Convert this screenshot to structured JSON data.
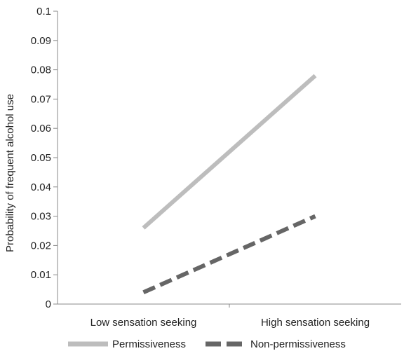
{
  "chart_data": {
    "type": "line",
    "categories": [
      "Low sensation seeking",
      "High sensation seeking"
    ],
    "series": [
      {
        "name": "Permissiveness",
        "values": [
          0.026,
          0.078
        ],
        "color": "#bdbdbd",
        "dash": "solid"
      },
      {
        "name": "Non-permissiveness",
        "values": [
          0.004,
          0.03
        ],
        "color": "#666666",
        "dash": "dashed"
      }
    ],
    "ylabel": "Probability of frequent alcohol use",
    "xlabel": "",
    "title": "",
    "ylim": [
      0,
      0.1
    ],
    "yticks": [
      "0",
      "0.01",
      "0.02",
      "0.03",
      "0.04",
      "0.05",
      "0.06",
      "0.07",
      "0.08",
      "0.09",
      "0.1"
    ],
    "grid": false,
    "legend_position": "bottom"
  }
}
